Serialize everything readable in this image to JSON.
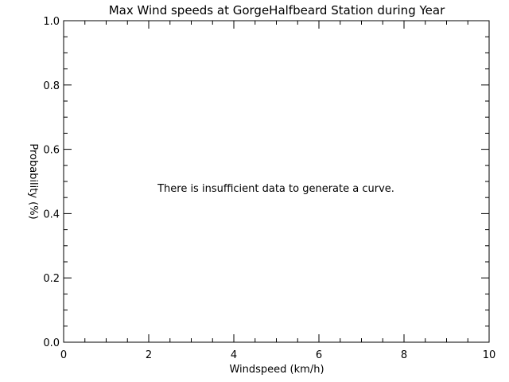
{
  "chart_data": {
    "type": "line",
    "title": "Max Wind speeds at GorgeHalfbeard Station during Year",
    "xlabel": "Windspeed (km/h)",
    "ylabel": "Probability (%)",
    "xlim": [
      0,
      10
    ],
    "ylim": [
      0,
      1.0
    ],
    "x_ticks": [
      0,
      2,
      4,
      6,
      8,
      10
    ],
    "x_tick_labels": [
      "0",
      "2",
      "4",
      "6",
      "8",
      "10"
    ],
    "y_ticks": [
      0,
      0.2,
      0.4,
      0.6,
      0.8,
      1.0
    ],
    "y_tick_labels": [
      "0.0",
      "0.2",
      "0.4",
      "0.6",
      "0.8",
      "1.0"
    ],
    "x_minor_step": 0.5,
    "y_minor_step": 0.05,
    "grid": false,
    "series": [],
    "annotation": "There is insufficient data to generate a curve."
  }
}
